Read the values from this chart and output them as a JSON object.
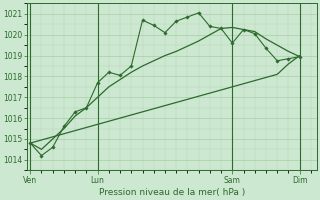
{
  "bg_color": "#cce8d0",
  "grid_color": "#aaccaa",
  "line_color": "#2d6a2d",
  "marker_color": "#2d6a2d",
  "xlabel": "Pression niveau de la mer( hPa )",
  "ylabel_ticks": [
    1014,
    1015,
    1016,
    1017,
    1018,
    1019,
    1020,
    1021
  ],
  "ylim": [
    1013.5,
    1021.5
  ],
  "xtick_labels": [
    "Ven",
    "Lun",
    "Sam",
    "Dim"
  ],
  "xtick_positions": [
    0,
    6,
    18,
    24
  ],
  "series_jagged": [
    1014.8,
    1014.2,
    1014.6,
    1015.6,
    1016.3,
    1016.5,
    1017.7,
    1018.2,
    1018.05,
    1018.5,
    1020.7,
    1020.45,
    1020.1,
    1020.65,
    1020.85,
    1021.05,
    1020.4,
    1020.3,
    1019.6,
    1020.25,
    1020.05,
    1019.35,
    1018.75,
    1018.85,
    1018.95
  ],
  "series_smooth": [
    1014.8,
    1014.5,
    1015.0,
    1015.5,
    1016.1,
    1016.5,
    1017.0,
    1017.5,
    1017.85,
    1018.2,
    1018.5,
    1018.75,
    1019.0,
    1019.2,
    1019.45,
    1019.7,
    1020.0,
    1020.3,
    1020.35,
    1020.25,
    1020.15,
    1019.8,
    1019.5,
    1019.2,
    1018.95
  ],
  "series_trend": [
    1014.8,
    1014.95,
    1015.1,
    1015.25,
    1015.4,
    1015.55,
    1015.7,
    1015.85,
    1016.0,
    1016.15,
    1016.3,
    1016.45,
    1016.6,
    1016.75,
    1016.9,
    1017.05,
    1017.2,
    1017.35,
    1017.5,
    1017.65,
    1017.8,
    1017.95,
    1018.1,
    1018.6,
    1019.0
  ],
  "n_points": 25
}
